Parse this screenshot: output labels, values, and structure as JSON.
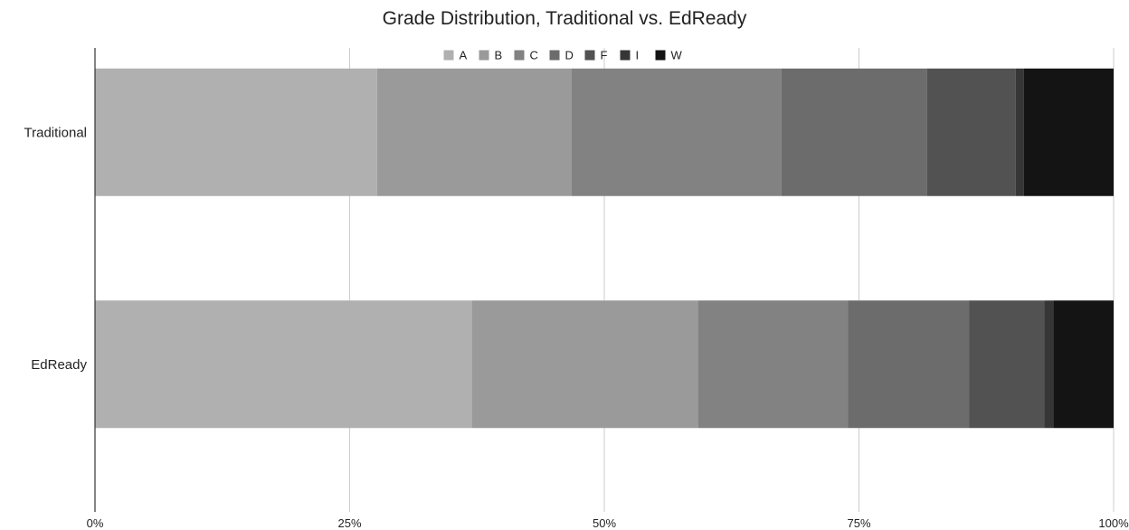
{
  "chart_data": {
    "type": "bar",
    "orientation": "horizontal",
    "stacked": true,
    "percent_stacked": true,
    "title": "Grade Distribution, Traditional vs. EdReady",
    "xlabel": "",
    "ylabel": "",
    "xlim": [
      0,
      100
    ],
    "x_ticks": [
      "0%",
      "25%",
      "50%",
      "75%",
      "100%"
    ],
    "grid": true,
    "legend_position": "top",
    "categories": [
      "Traditional",
      "EdReady"
    ],
    "series": [
      {
        "name": "A",
        "color": "#b0b0b0",
        "values": [
          27.7,
          37.0
        ]
      },
      {
        "name": "B",
        "color": "#9a9a9a",
        "values": [
          19.1,
          22.2
        ]
      },
      {
        "name": "C",
        "color": "#828282",
        "values": [
          20.6,
          14.7
        ]
      },
      {
        "name": "D",
        "color": "#6c6c6c",
        "values": [
          14.3,
          11.9
        ]
      },
      {
        "name": "F",
        "color": "#525252",
        "values": [
          8.7,
          7.4
        ]
      },
      {
        "name": "I",
        "color": "#363636",
        "values": [
          0.8,
          0.9
        ]
      },
      {
        "name": "W",
        "color": "#141414",
        "values": [
          8.8,
          5.9
        ]
      }
    ]
  }
}
